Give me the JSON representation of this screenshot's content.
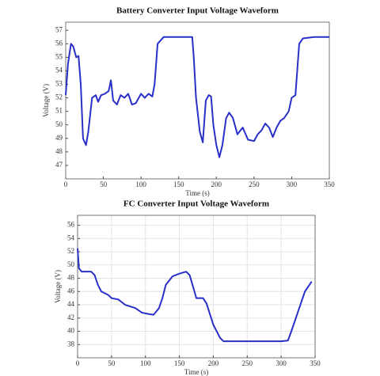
{
  "chart_data": [
    {
      "type": "line",
      "title": "Battery Converter Input Voltage Waveform",
      "x_label": "Time (s)",
      "y_label": "Voltage (V)",
      "xlim": [
        0,
        350
      ],
      "xticks": [
        0,
        50,
        100,
        150,
        200,
        250,
        300,
        350
      ],
      "ylim": [
        46,
        57.6
      ],
      "yticks": [
        47,
        48,
        49,
        50,
        51,
        52,
        53,
        54,
        55,
        56,
        57
      ],
      "grid": false,
      "x": [
        0,
        3,
        7,
        10,
        14,
        17,
        20,
        23,
        27,
        30,
        35,
        40,
        43,
        47,
        52,
        57,
        60,
        63,
        68,
        73,
        78,
        83,
        88,
        93,
        100,
        105,
        110,
        115,
        118,
        122,
        130,
        160,
        168,
        170,
        173,
        178,
        182,
        186,
        190,
        193,
        196,
        200,
        204,
        208,
        213,
        217,
        222,
        228,
        235,
        242,
        250,
        255,
        260,
        265,
        270,
        275,
        280,
        285,
        290,
        296,
        300,
        305,
        310,
        315,
        330,
        350
      ],
      "series": [
        {
          "color": "#2a2fc8",
          "values": [
            52.2,
            54.5,
            56,
            55.8,
            55,
            55.1,
            53,
            49,
            48.5,
            49.5,
            52,
            52.2,
            51.7,
            52.2,
            52.3,
            52.5,
            53.3,
            51.8,
            51.5,
            52.2,
            52,
            52.3,
            51.5,
            51.6,
            52.3,
            52,
            52.3,
            52.1,
            53,
            56,
            56.5,
            56.5,
            56.5,
            55,
            52,
            49.5,
            48.7,
            51.8,
            52.2,
            52.1,
            50,
            48.5,
            47.6,
            48.5,
            50.5,
            50.9,
            50.5,
            49.3,
            49.8,
            48.9,
            48.8,
            49.3,
            49.6,
            50.1,
            49.8,
            49.1,
            49.8,
            50.3,
            50.5,
            51,
            52,
            52.2,
            56,
            56.4,
            56.5,
            56.5
          ]
        }
      ]
    },
    {
      "type": "line",
      "title": "FC Converter Input Voltage Waveform",
      "x_label": "Time (s)",
      "y_label": "Voltage (V)",
      "xlim": [
        0,
        350
      ],
      "xticks": [
        0,
        50,
        100,
        150,
        200,
        250,
        300,
        350
      ],
      "ylim": [
        36,
        57.5
      ],
      "yticks": [
        38,
        40,
        42,
        44,
        46,
        48,
        50,
        52,
        54,
        56
      ],
      "grid": true,
      "x": [
        0,
        2,
        6,
        20,
        25,
        30,
        35,
        45,
        50,
        60,
        70,
        85,
        95,
        105,
        112,
        120,
        125,
        130,
        140,
        150,
        160,
        165,
        170,
        175,
        185,
        190,
        200,
        210,
        215,
        230,
        300,
        310,
        315,
        325,
        335,
        345
      ],
      "series": [
        {
          "color": "#2a2fc8",
          "values": [
            52.5,
            49.5,
            49,
            49,
            48.5,
            47,
            46,
            45.5,
            45,
            44.8,
            44,
            43.5,
            42.8,
            42.6,
            42.5,
            43.5,
            45,
            47,
            48.3,
            48.7,
            49,
            48.5,
            46.8,
            45,
            45,
            44.2,
            41,
            39,
            38.5,
            38.5,
            38.5,
            38.6,
            40,
            43,
            46,
            47.5
          ]
        }
      ]
    }
  ]
}
